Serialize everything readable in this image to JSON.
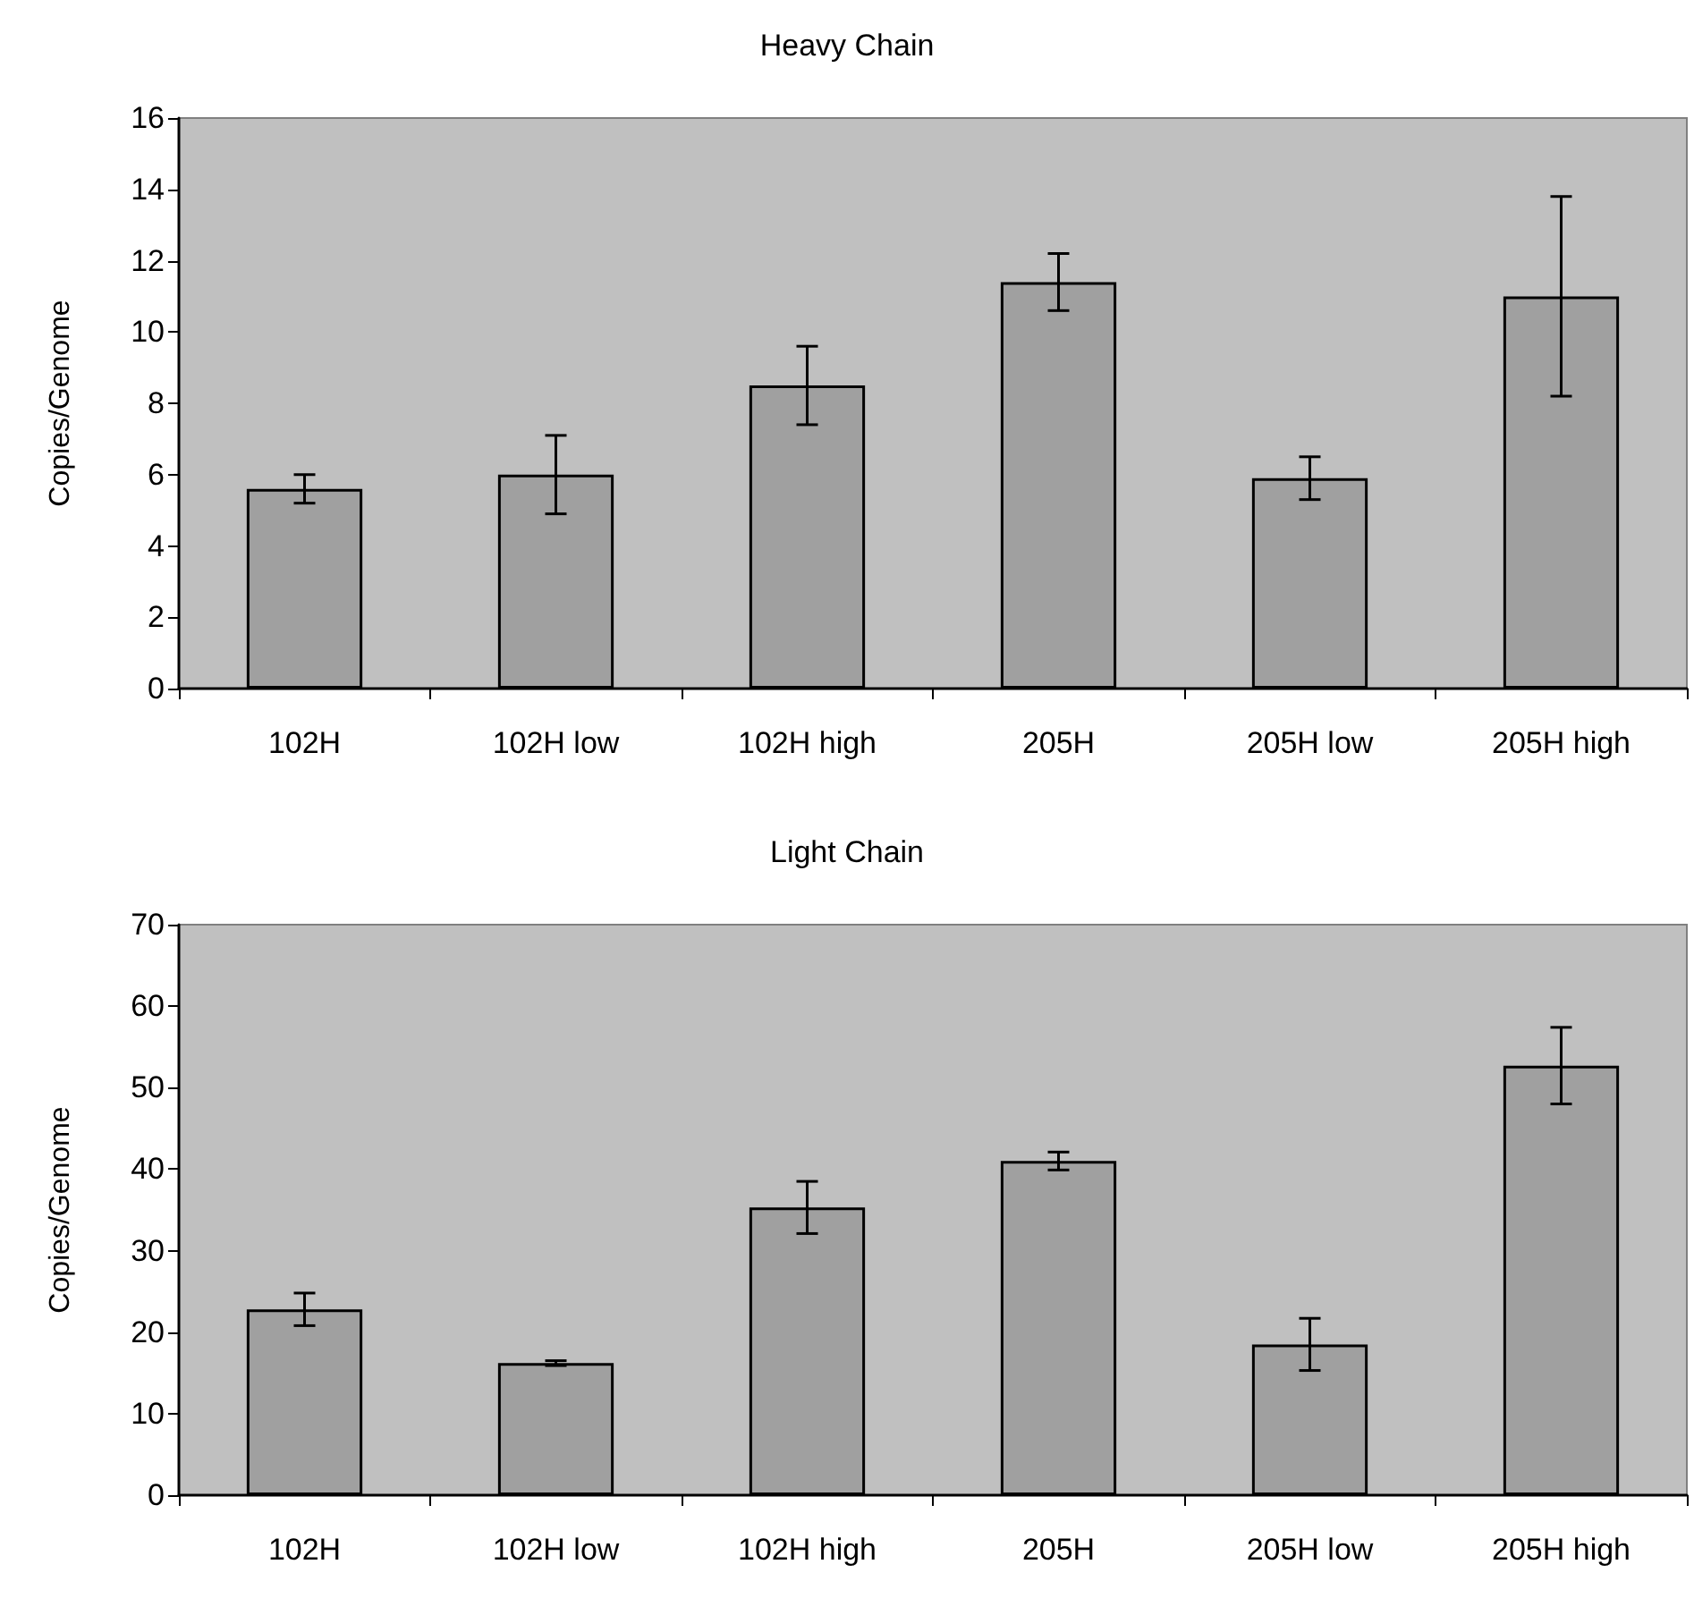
{
  "chart_data": [
    {
      "type": "bar",
      "title": "Heavy Chain",
      "ylabel": "Copies/Genome",
      "categories": [
        "102H",
        "102H low",
        "102H high",
        "205H",
        "205H low",
        "205H high"
      ],
      "values": [
        5.6,
        6.0,
        8.5,
        11.4,
        5.9,
        11.0
      ],
      "errors": [
        0.4,
        1.1,
        1.1,
        0.8,
        0.6,
        2.8
      ],
      "color": "#a0a0a0",
      "ylim": [
        0,
        16
      ],
      "yticks": [
        0,
        2,
        4,
        6,
        8,
        10,
        12,
        14,
        16
      ],
      "grid": false
    },
    {
      "type": "bar",
      "title": "Light Chain",
      "ylabel": "Copies/Genome",
      "categories": [
        "102H",
        "102H low",
        "102H high",
        "205H",
        "205H low",
        "205H high"
      ],
      "values": [
        22.8,
        16.2,
        35.3,
        41.0,
        18.5,
        52.7
      ],
      "errors": [
        2.0,
        0.3,
        3.2,
        1.1,
        3.2,
        4.7
      ],
      "color": "#a0a0a0",
      "ylim": [
        0,
        70
      ],
      "yticks": [
        0,
        10,
        20,
        30,
        40,
        50,
        60,
        70
      ],
      "grid": false
    }
  ]
}
